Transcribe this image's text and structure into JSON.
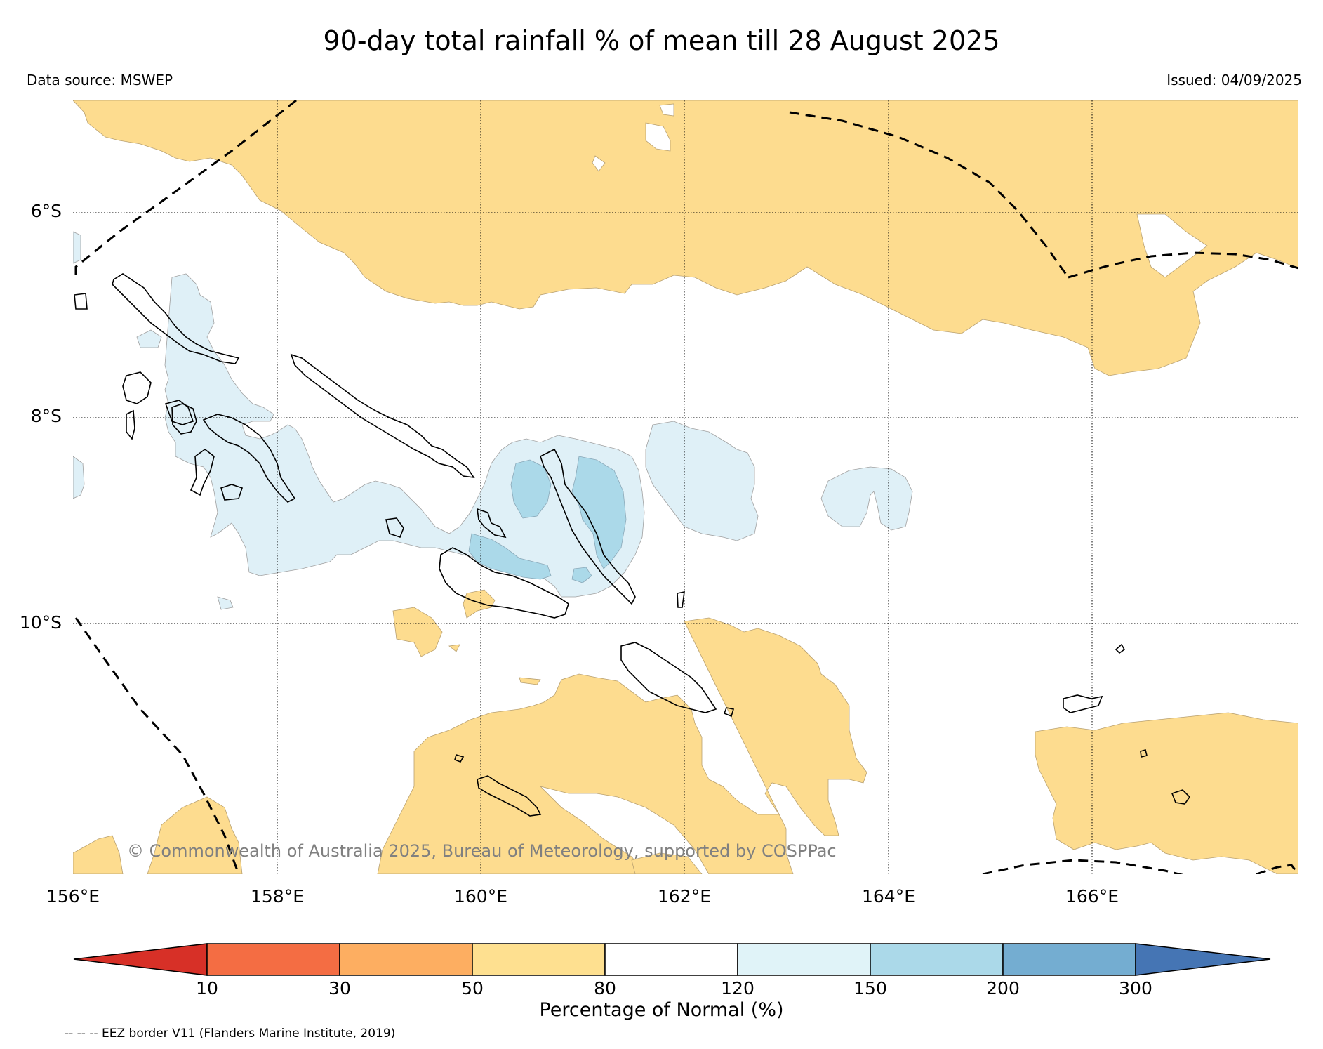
{
  "title": "90-day total rainfall % of mean till 28 August 2025",
  "data_source": "Data source: MSWEP",
  "issued": "Issued: 04/09/2025",
  "copyright": "© Commonwealth of Australia 2025, Bureau of Meteorology, supported by COSPPac",
  "eez_note": "-- -- -- EEZ border V11 (Flanders Marine Institute, 2019)",
  "map": {
    "lat_labels": [
      "6°S",
      "8°S",
      "10°S"
    ],
    "lon_labels": [
      "156°E",
      "158°E",
      "160°E",
      "162°E",
      "164°E",
      "166°E"
    ]
  },
  "colorbar": {
    "title": "Percentage of Normal (%)",
    "ticks": [
      "10",
      "30",
      "50",
      "80",
      "120",
      "150",
      "200",
      "300"
    ],
    "colors": [
      "#d73027",
      "#f46d43",
      "#fdae61",
      "#fee090",
      "#ffffff",
      "#e0f3f8",
      "#abd9e9",
      "#74add1",
      "#4575b4"
    ]
  },
  "colors": {
    "below_normal_80": "#fddc8f",
    "above_normal_120": "#dff0f7",
    "above_normal_150": "#abd9e9"
  }
}
